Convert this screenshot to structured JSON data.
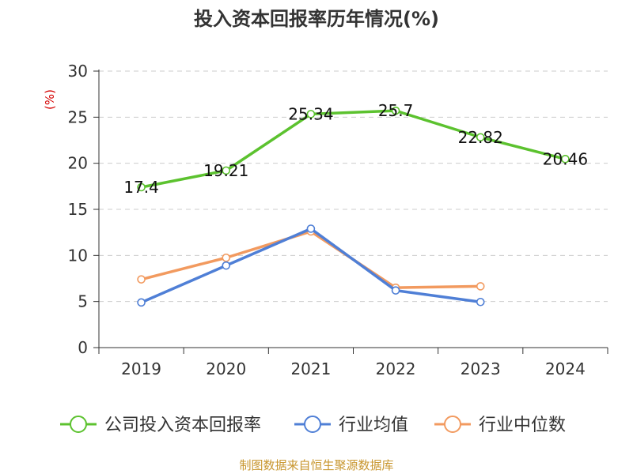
{
  "chart_data": {
    "type": "line",
    "title": "投入资本回报率历年情况(%)",
    "ylabel": "(%)",
    "xlabel": "",
    "categories": [
      "2019",
      "2020",
      "2021",
      "2022",
      "2023",
      "2024"
    ],
    "ylim": [
      0,
      30
    ],
    "yticks": [
      0,
      5,
      10,
      15,
      20,
      25,
      30
    ],
    "grid": true,
    "legend_position": "bottom",
    "series": [
      {
        "name": "公司投入资本回报率",
        "color": "#5cc22f",
        "values": [
          17.4,
          19.21,
          25.34,
          25.7,
          22.82,
          20.46
        ],
        "labels": [
          "17.4",
          "19.21",
          "25.34",
          "25.7",
          "22.82",
          "20.46"
        ]
      },
      {
        "name": "行业均值",
        "color": "#4f7fd6",
        "values": [
          4.9,
          8.9,
          12.9,
          6.2,
          4.95,
          null
        ]
      },
      {
        "name": "行业中位数",
        "color": "#f29a5f",
        "values": [
          7.4,
          9.75,
          12.6,
          6.5,
          6.65,
          null
        ]
      }
    ]
  },
  "footer": {
    "source": "制图数据来自恒生聚源数据库"
  }
}
